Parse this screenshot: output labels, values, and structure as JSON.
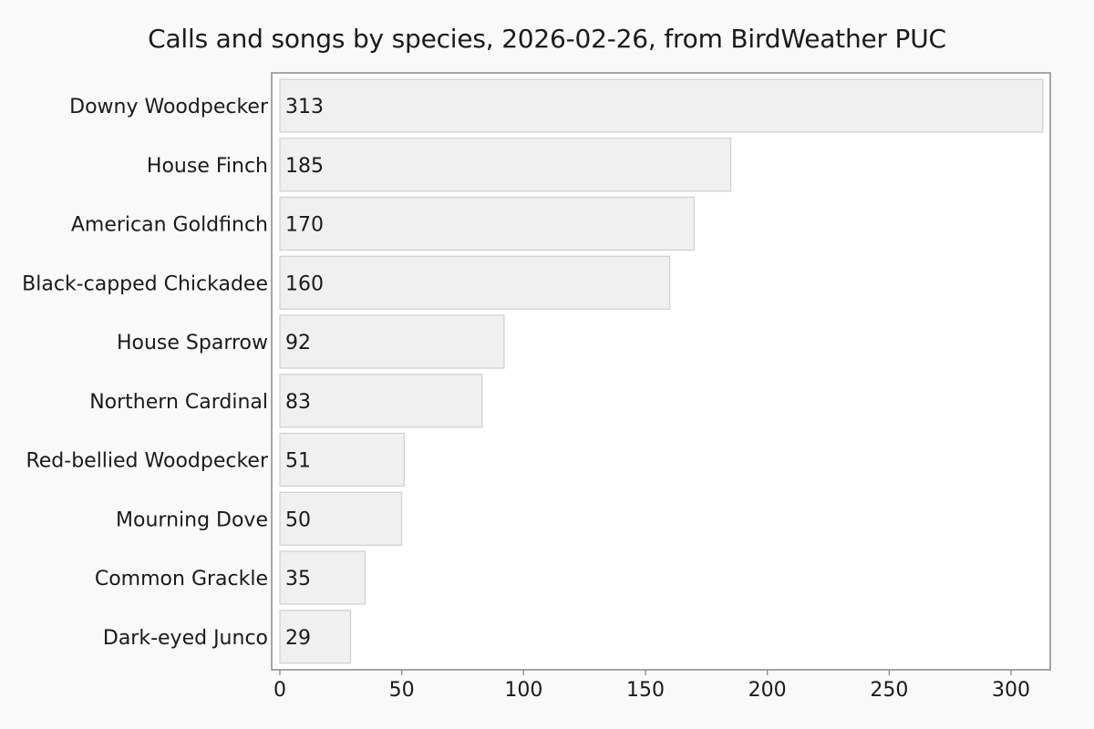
{
  "chart_data": {
    "type": "bar",
    "orientation": "horizontal",
    "title": "Calls and songs by species, 2026-02-26, from BirdWeather PUC",
    "xlabel": "",
    "ylabel": "",
    "categories": [
      "Downy Woodpecker",
      "House Finch",
      "American Goldfinch",
      "Black-capped Chickadee",
      "House Sparrow",
      "Northern Cardinal",
      "Red-bellied Woodpecker",
      "Mourning Dove",
      "Common Grackle",
      "Dark-eyed Junco"
    ],
    "values": [
      313,
      185,
      170,
      160,
      92,
      83,
      51,
      50,
      35,
      29
    ],
    "xlim": [
      0,
      315
    ],
    "xticks": [
      0,
      50,
      100,
      150,
      200,
      250,
      300
    ],
    "grid": false,
    "legend": "none",
    "colors": {
      "bar_fill": "#f0f0f0",
      "bar_stroke": "#cfcfcf",
      "axes_stroke": "#8a8a8a",
      "background": "#f9f9f9",
      "plot_background": "#ffffff"
    }
  }
}
